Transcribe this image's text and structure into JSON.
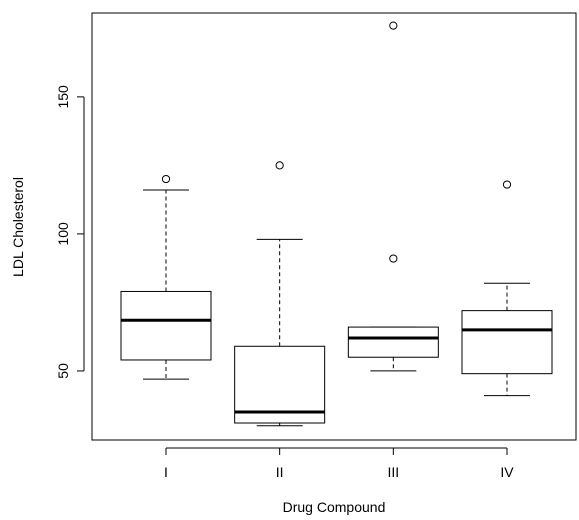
{
  "chart_data": {
    "type": "box",
    "title": "",
    "xlabel": "Drug Compound",
    "ylabel": "LDL Cholesterol",
    "categories": [
      "I",
      "II",
      "III",
      "IV"
    ],
    "ylim": [
      24.8,
      180.6
    ],
    "yticks": [
      50,
      100,
      150
    ],
    "grid": false,
    "legend": "none",
    "boxes": [
      {
        "label": "I",
        "whisker_low": 47,
        "q1": 54,
        "median": 68.5,
        "q3": 79,
        "whisker_high": 116,
        "outliers": [
          120
        ]
      },
      {
        "label": "II",
        "whisker_low": 30,
        "q1": 31,
        "median": 35,
        "q3": 59,
        "whisker_high": 98,
        "outliers": [
          125
        ]
      },
      {
        "label": "III",
        "whisker_low": 50,
        "q1": 55,
        "median": 62,
        "q3": 66,
        "whisker_high": 66,
        "outliers": [
          91,
          176
        ]
      },
      {
        "label": "IV",
        "whisker_low": 41,
        "q1": 49,
        "median": 65,
        "q3": 72,
        "whisker_high": 82,
        "outliers": [
          118
        ]
      }
    ]
  }
}
